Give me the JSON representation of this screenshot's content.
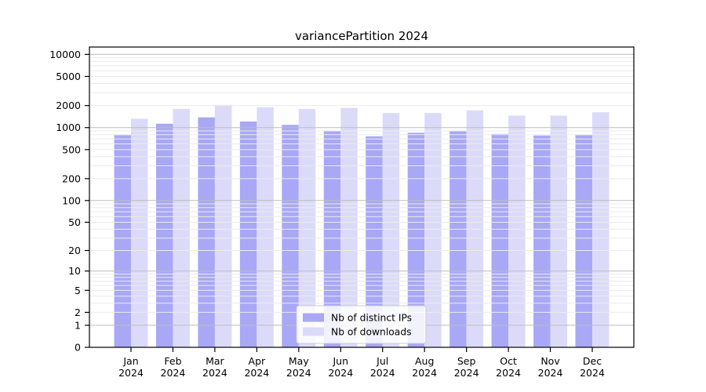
{
  "chart_data": {
    "type": "bar",
    "title": "variancePartition 2024",
    "categories": [
      "Jan",
      "Feb",
      "Mar",
      "Apr",
      "May",
      "Jun",
      "Jul",
      "Aug",
      "Sep",
      "Oct",
      "Nov",
      "Dec"
    ],
    "category_year": "2024",
    "series": [
      {
        "name": "Nb of distinct IPs",
        "color": "#a8a8f6",
        "values": [
          790,
          1130,
          1380,
          1210,
          1090,
          900,
          760,
          850,
          890,
          820,
          780,
          790
        ]
      },
      {
        "name": "Nb of downloads",
        "color": "#dbdbf9",
        "values": [
          1320,
          1800,
          2040,
          1900,
          1800,
          1860,
          1580,
          1580,
          1720,
          1460,
          1460,
          1620
        ]
      }
    ],
    "xlabel": "",
    "ylabel": "",
    "yscale": "log1p",
    "yticks": [
      10000,
      5000,
      2000,
      1000,
      500,
      200,
      100,
      50,
      20,
      10,
      5,
      2,
      1,
      0
    ],
    "major_grid_values": [
      1,
      10,
      100,
      1000,
      10000
    ],
    "ylim": [
      0,
      12600
    ],
    "grid": true,
    "legend_position": "lower center",
    "colors": {
      "major_grid": "#bdbdbd",
      "minor_grid": "#ebebeb",
      "axis": "#000000",
      "background": "#ffffff",
      "legend_border": "#cccccc",
      "legend_background": "#ffffff"
    }
  }
}
